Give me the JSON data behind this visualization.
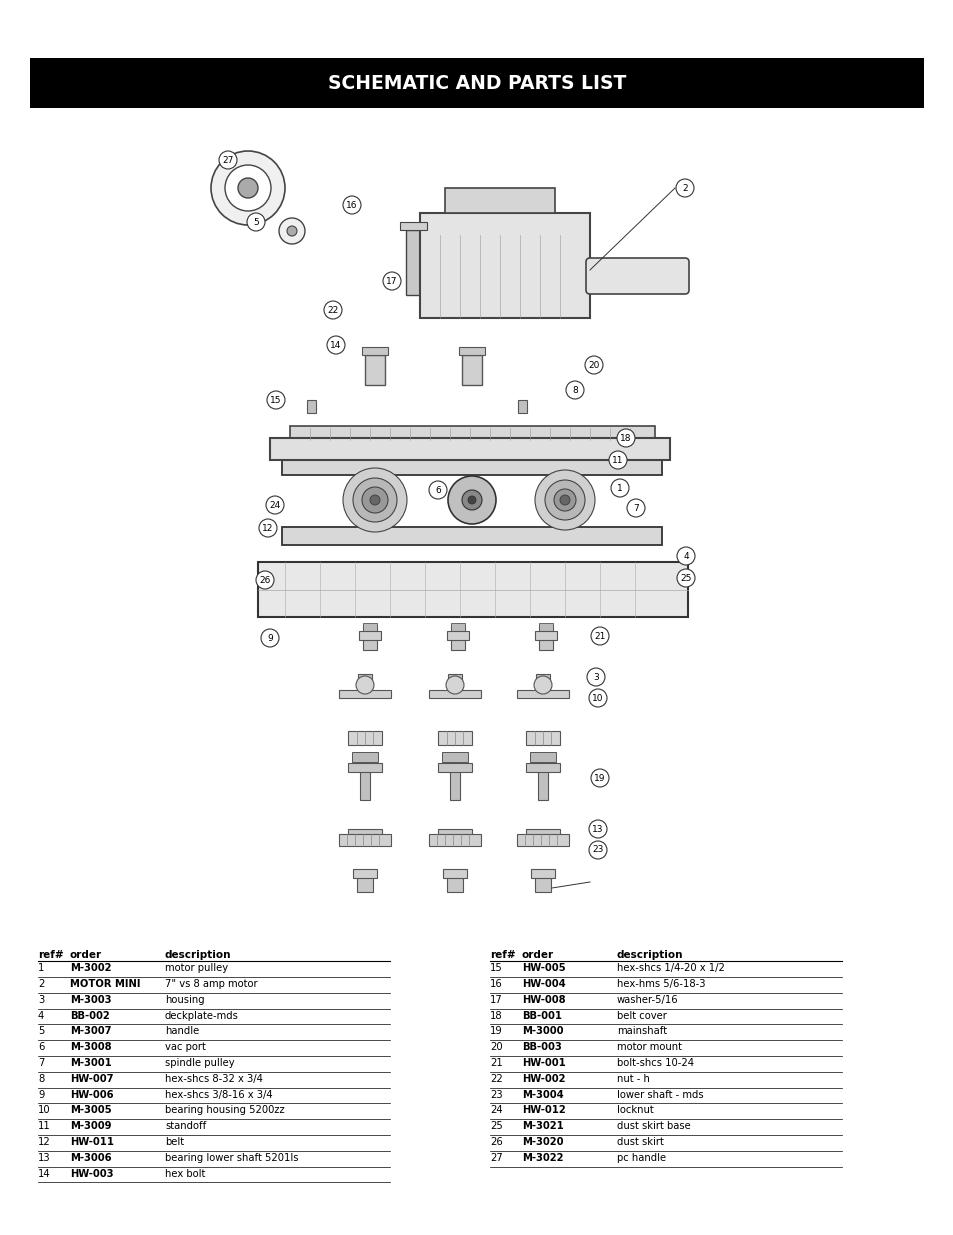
{
  "title": "SCHEMATIC AND PARTS LIST",
  "title_bg": "#000000",
  "title_color": "#ffffff",
  "page_bg": "#ffffff",
  "parts_left": [
    {
      "ref": "1",
      "order": "M-3002",
      "desc": "motor pulley"
    },
    {
      "ref": "2",
      "order": "MOTOR MINI",
      "desc": "7\" vs 8 amp motor"
    },
    {
      "ref": "3",
      "order": "M-3003",
      "desc": "housing"
    },
    {
      "ref": "4",
      "order": "BB-002",
      "desc": "deckplate-mds"
    },
    {
      "ref": "5",
      "order": "M-3007",
      "desc": "handle"
    },
    {
      "ref": "6",
      "order": "M-3008",
      "desc": "vac port"
    },
    {
      "ref": "7",
      "order": "M-3001",
      "desc": "spindle pulley"
    },
    {
      "ref": "8",
      "order": "HW-007",
      "desc": "hex-shcs 8-32 x 3/4"
    },
    {
      "ref": "9",
      "order": "HW-006",
      "desc": "hex-shcs 3/8-16 x 3/4"
    },
    {
      "ref": "10",
      "order": "M-3005",
      "desc": "bearing housing 5200zz"
    },
    {
      "ref": "11",
      "order": "M-3009",
      "desc": "standoff"
    },
    {
      "ref": "12",
      "order": "HW-011",
      "desc": "belt"
    },
    {
      "ref": "13",
      "order": "M-3006",
      "desc": "bearing lower shaft 5201ls"
    },
    {
      "ref": "14",
      "order": "HW-003",
      "desc": "hex bolt"
    }
  ],
  "parts_right": [
    {
      "ref": "15",
      "order": "HW-005",
      "desc": "hex-shcs 1/4-20 x 1/2"
    },
    {
      "ref": "16",
      "order": "HW-004",
      "desc": "hex-hms 5/6-18-3"
    },
    {
      "ref": "17",
      "order": "HW-008",
      "desc": "washer-5/16"
    },
    {
      "ref": "18",
      "order": "BB-001",
      "desc": "belt cover"
    },
    {
      "ref": "19",
      "order": "M-3000",
      "desc": "mainshaft"
    },
    {
      "ref": "20",
      "order": "BB-003",
      "desc": "motor mount"
    },
    {
      "ref": "21",
      "order": "HW-001",
      "desc": "bolt-shcs 10-24"
    },
    {
      "ref": "22",
      "order": "HW-002",
      "desc": "nut - h"
    },
    {
      "ref": "23",
      "order": "M-3004",
      "desc": "lower shaft - mds"
    },
    {
      "ref": "24",
      "order": "HW-012",
      "desc": "locknut"
    },
    {
      "ref": "25",
      "order": "M-3021",
      "desc": "dust skirt base"
    },
    {
      "ref": "26",
      "order": "M-3020",
      "desc": "dust skirt"
    },
    {
      "ref": "27",
      "order": "M-3022",
      "desc": "pc handle"
    }
  ],
  "col_headers": [
    "ref#",
    "order",
    "description"
  ]
}
